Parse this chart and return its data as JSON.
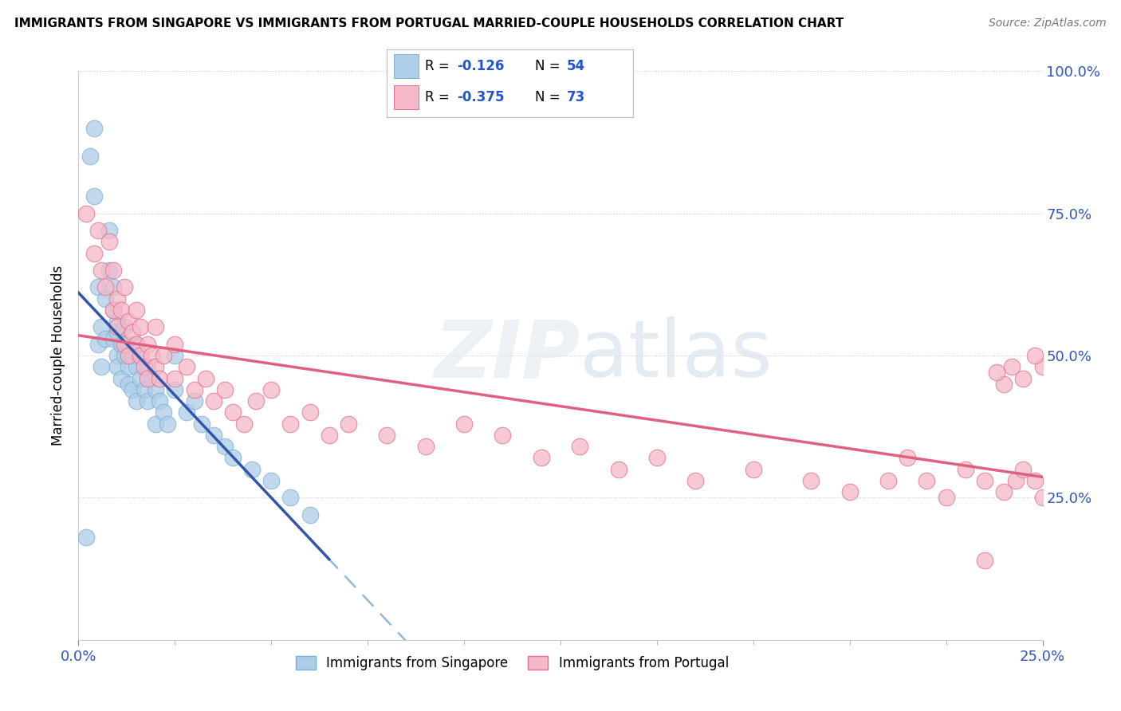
{
  "title": "IMMIGRANTS FROM SINGAPORE VS IMMIGRANTS FROM PORTUGAL MARRIED-COUPLE HOUSEHOLDS CORRELATION CHART",
  "source": "Source: ZipAtlas.com",
  "ylabel": "Married-couple Households",
  "xlim": [
    0.0,
    0.25
  ],
  "ylim": [
    0.0,
    1.0
  ],
  "singapore_color": "#aecde8",
  "singapore_edge": "#7aafd4",
  "portugal_color": "#f5b8c8",
  "portugal_edge": "#e07090",
  "singapore_R": -0.126,
  "singapore_N": 54,
  "portugal_R": -0.375,
  "portugal_N": 73,
  "singapore_line_color": "#3355aa",
  "portugal_line_color": "#e06080",
  "dashed_line_color": "#90b8d8",
  "legend_R_color": "#2255cc",
  "legend_N_color": "#2255cc",
  "singapore_x": [
    0.002,
    0.003,
    0.004,
    0.004,
    0.005,
    0.005,
    0.006,
    0.006,
    0.007,
    0.007,
    0.008,
    0.008,
    0.009,
    0.009,
    0.009,
    0.01,
    0.01,
    0.01,
    0.01,
    0.011,
    0.011,
    0.012,
    0.012,
    0.013,
    0.013,
    0.013,
    0.014,
    0.014,
    0.015,
    0.015,
    0.015,
    0.016,
    0.016,
    0.017,
    0.018,
    0.018,
    0.019,
    0.02,
    0.02,
    0.021,
    0.022,
    0.023,
    0.025,
    0.025,
    0.028,
    0.03,
    0.032,
    0.035,
    0.038,
    0.04,
    0.045,
    0.05,
    0.055,
    0.06
  ],
  "singapore_y": [
    0.18,
    0.85,
    0.9,
    0.78,
    0.52,
    0.62,
    0.55,
    0.48,
    0.6,
    0.53,
    0.72,
    0.65,
    0.58,
    0.53,
    0.62,
    0.5,
    0.54,
    0.48,
    0.56,
    0.52,
    0.46,
    0.5,
    0.55,
    0.48,
    0.52,
    0.45,
    0.5,
    0.44,
    0.48,
    0.52,
    0.42,
    0.5,
    0.46,
    0.44,
    0.48,
    0.42,
    0.46,
    0.44,
    0.38,
    0.42,
    0.4,
    0.38,
    0.44,
    0.5,
    0.4,
    0.42,
    0.38,
    0.36,
    0.34,
    0.32,
    0.3,
    0.28,
    0.25,
    0.22
  ],
  "portugal_x": [
    0.002,
    0.004,
    0.005,
    0.006,
    0.007,
    0.008,
    0.009,
    0.009,
    0.01,
    0.01,
    0.011,
    0.012,
    0.012,
    0.013,
    0.013,
    0.014,
    0.015,
    0.015,
    0.016,
    0.016,
    0.017,
    0.018,
    0.018,
    0.019,
    0.02,
    0.02,
    0.021,
    0.022,
    0.025,
    0.025,
    0.028,
    0.03,
    0.033,
    0.035,
    0.038,
    0.04,
    0.043,
    0.046,
    0.05,
    0.055,
    0.06,
    0.065,
    0.07,
    0.08,
    0.09,
    0.1,
    0.11,
    0.12,
    0.13,
    0.14,
    0.15,
    0.16,
    0.175,
    0.19,
    0.2,
    0.21,
    0.215,
    0.22,
    0.225,
    0.23,
    0.235,
    0.24,
    0.243,
    0.245,
    0.248,
    0.25,
    0.25,
    0.248,
    0.245,
    0.242,
    0.24,
    0.238,
    0.235
  ],
  "portugal_y": [
    0.75,
    0.68,
    0.72,
    0.65,
    0.62,
    0.7,
    0.58,
    0.65,
    0.6,
    0.55,
    0.58,
    0.52,
    0.62,
    0.56,
    0.5,
    0.54,
    0.52,
    0.58,
    0.5,
    0.55,
    0.48,
    0.52,
    0.46,
    0.5,
    0.48,
    0.55,
    0.46,
    0.5,
    0.52,
    0.46,
    0.48,
    0.44,
    0.46,
    0.42,
    0.44,
    0.4,
    0.38,
    0.42,
    0.44,
    0.38,
    0.4,
    0.36,
    0.38,
    0.36,
    0.34,
    0.38,
    0.36,
    0.32,
    0.34,
    0.3,
    0.32,
    0.28,
    0.3,
    0.28,
    0.26,
    0.28,
    0.32,
    0.28,
    0.25,
    0.3,
    0.28,
    0.26,
    0.28,
    0.3,
    0.28,
    0.25,
    0.48,
    0.5,
    0.46,
    0.48,
    0.45,
    0.47,
    0.14
  ]
}
